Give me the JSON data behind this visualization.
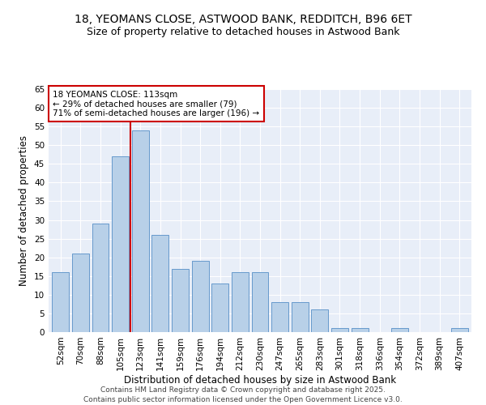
{
  "title": "18, YEOMANS CLOSE, ASTWOOD BANK, REDDITCH, B96 6ET",
  "subtitle": "Size of property relative to detached houses in Astwood Bank",
  "xlabel": "Distribution of detached houses by size in Astwood Bank",
  "ylabel": "Number of detached properties",
  "categories": [
    "52sqm",
    "70sqm",
    "88sqm",
    "105sqm",
    "123sqm",
    "141sqm",
    "159sqm",
    "176sqm",
    "194sqm",
    "212sqm",
    "230sqm",
    "247sqm",
    "265sqm",
    "283sqm",
    "301sqm",
    "318sqm",
    "336sqm",
    "354sqm",
    "372sqm",
    "389sqm",
    "407sqm"
  ],
  "values": [
    16,
    21,
    29,
    47,
    54,
    26,
    17,
    19,
    13,
    16,
    16,
    8,
    8,
    6,
    1,
    1,
    0,
    1,
    0,
    0,
    1
  ],
  "bar_color": "#b8d0e8",
  "bar_edge_color": "#6699cc",
  "vline_x": 3.5,
  "vline_color": "#cc0000",
  "annotation_text": "18 YEOMANS CLOSE: 113sqm\n← 29% of detached houses are smaller (79)\n71% of semi-detached houses are larger (196) →",
  "annotation_box_facecolor": "#ffffff",
  "annotation_box_edgecolor": "#cc0000",
  "ylim": [
    0,
    65
  ],
  "yticks": [
    0,
    5,
    10,
    15,
    20,
    25,
    30,
    35,
    40,
    45,
    50,
    55,
    60,
    65
  ],
  "footer": "Contains HM Land Registry data © Crown copyright and database right 2025.\nContains public sector information licensed under the Open Government Licence v3.0.",
  "background_color": "#ffffff",
  "plot_bg_color": "#e8eef8",
  "title_fontsize": 10,
  "subtitle_fontsize": 9,
  "axis_label_fontsize": 8.5,
  "tick_fontsize": 7.5,
  "annotation_fontsize": 7.5,
  "footer_fontsize": 6.5
}
